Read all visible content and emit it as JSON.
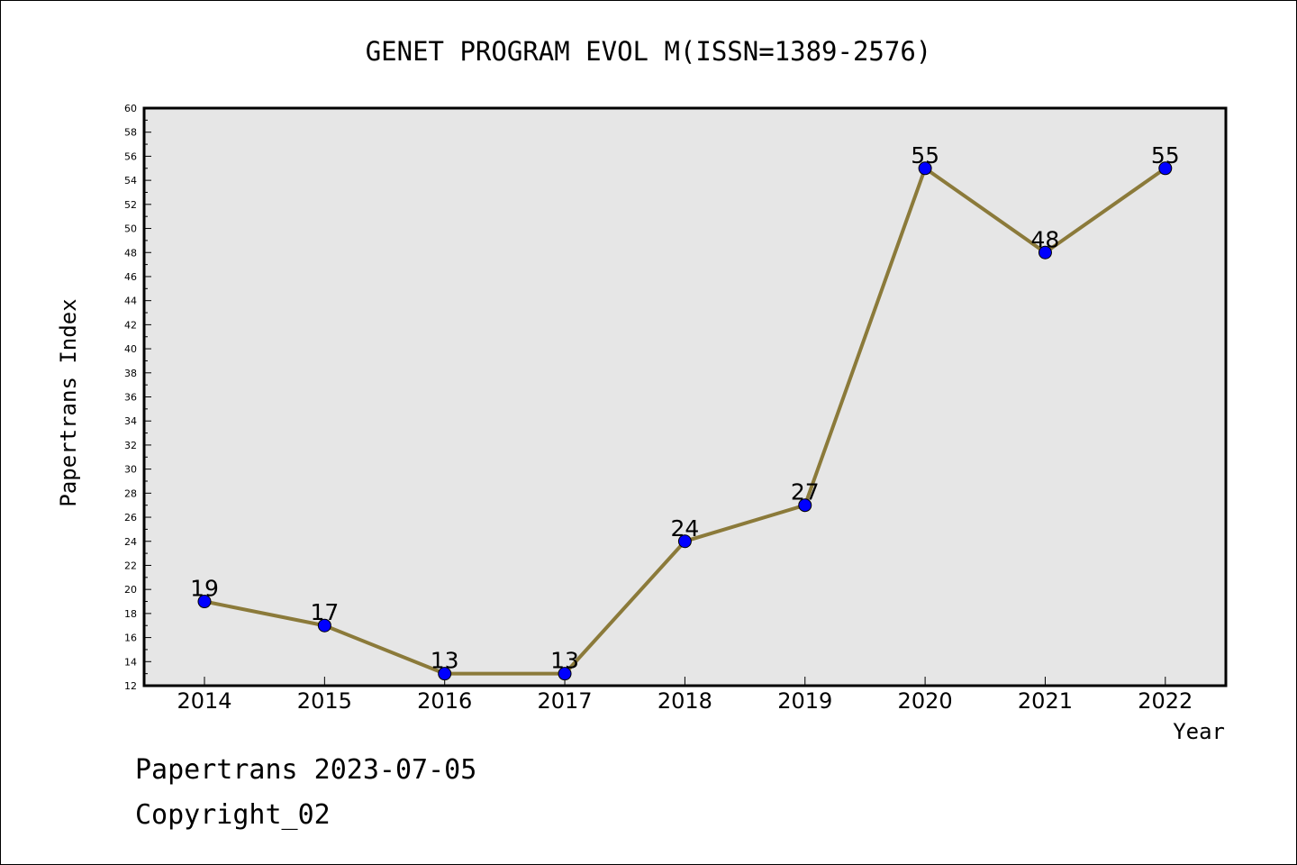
{
  "chart_data": {
    "type": "line",
    "title": "GENET PROGRAM EVOL M(ISSN=1389-2576)",
    "xlabel": "Year",
    "ylabel": "Papertrans Index",
    "x": [
      "2014",
      "2015",
      "2016",
      "2017",
      "2018",
      "2019",
      "2020",
      "2021",
      "2022"
    ],
    "series": [
      {
        "values": [
          19,
          17,
          13,
          13,
          24,
          27,
          55,
          48,
          55
        ]
      }
    ],
    "ylim": [
      12,
      60
    ],
    "yticks": [
      12,
      14,
      16,
      18,
      20,
      22,
      24,
      26,
      28,
      30,
      32,
      34,
      36,
      38,
      40,
      42,
      44,
      46,
      48,
      50,
      52,
      54,
      56,
      58,
      60
    ],
    "grid": false,
    "line_color": "#8b7a3a",
    "marker_color": "#0000ff",
    "plot_background": "#e6e6e6"
  },
  "footer": {
    "line1": "Papertrans 2023-07-05",
    "line2": "Copyright_02"
  }
}
